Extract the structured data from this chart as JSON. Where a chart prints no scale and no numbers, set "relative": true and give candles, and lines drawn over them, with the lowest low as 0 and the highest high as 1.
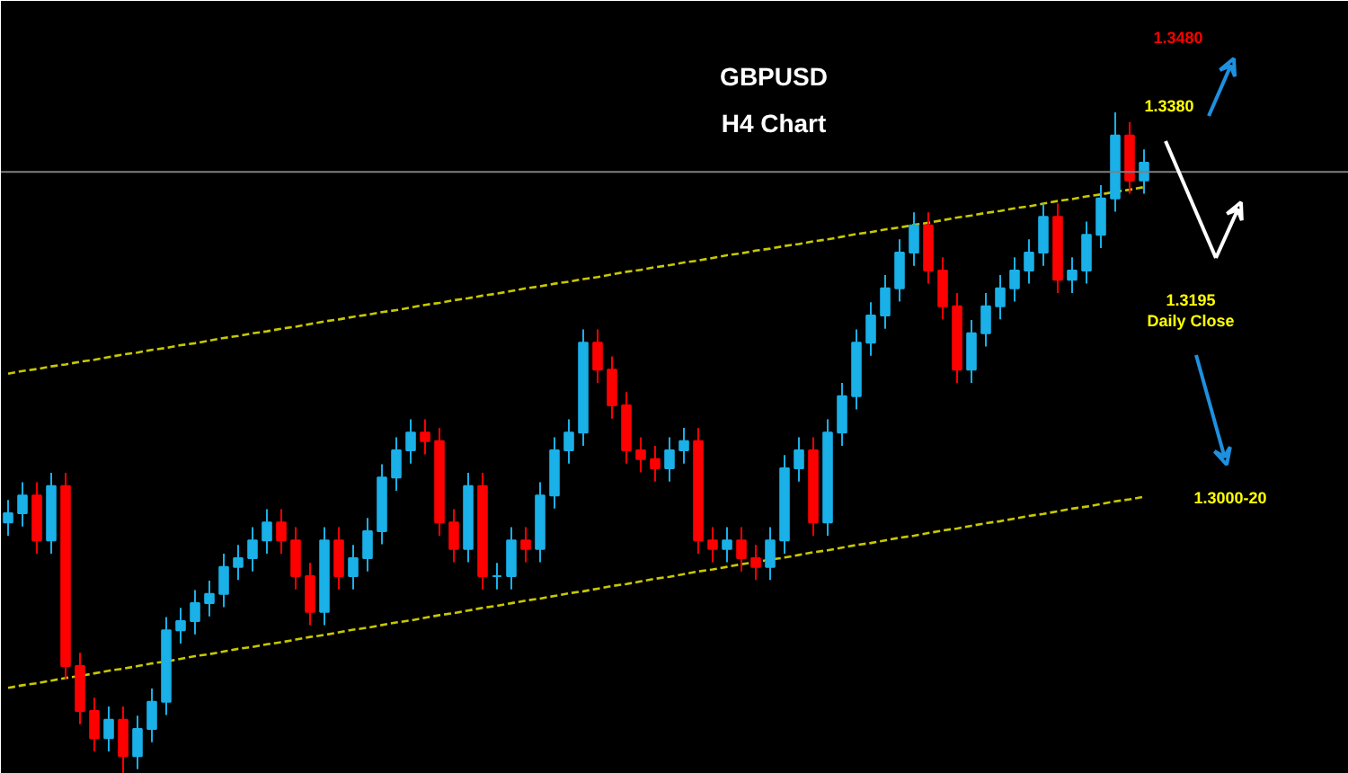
{
  "chart_data": {
    "type": "candlestick",
    "relative": true,
    "title": "GBPUSD",
    "subtitle": "H4 Chart",
    "categories": [
      null,
      null,
      null,
      null,
      null,
      null,
      null,
      null,
      null,
      null,
      null,
      null,
      null,
      null,
      null,
      null,
      null,
      null,
      null,
      null,
      null,
      null,
      null,
      null,
      null,
      null,
      null,
      null,
      null,
      null,
      null,
      null,
      null,
      null,
      null,
      null,
      null,
      null,
      null,
      null,
      null,
      null,
      null,
      null,
      null,
      null,
      null,
      null,
      null,
      null,
      null,
      null,
      null,
      null,
      null,
      null,
      null,
      null,
      null,
      null,
      null,
      null,
      null,
      null,
      null,
      null,
      null,
      null,
      null,
      null,
      null,
      null,
      null,
      null,
      null,
      null,
      null,
      null,
      null,
      null
    ],
    "ohlc": [
      [
        0.38,
        0.414,
        0.36,
        0.394
      ],
      [
        0.394,
        0.441,
        0.374,
        0.421
      ],
      [
        0.421,
        0.441,
        0.333,
        0.353
      ],
      [
        0.353,
        0.455,
        0.333,
        0.435
      ],
      [
        0.435,
        0.455,
        0.143,
        0.163
      ],
      [
        0.163,
        0.183,
        0.075,
        0.095
      ],
      [
        0.095,
        0.115,
        0.034,
        0.054
      ],
      [
        0.054,
        0.102,
        0.034,
        0.082
      ],
      [
        0.082,
        0.102,
        0,
        0.027
      ],
      [
        0.027,
        0.088,
        0.007,
        0.068
      ],
      [
        0.068,
        0.129,
        0.048,
        0.109
      ],
      [
        0.109,
        0.237,
        0.089,
        0.217
      ],
      [
        0.217,
        0.251,
        0.197,
        0.231
      ],
      [
        0.231,
        0.278,
        0.211,
        0.258
      ],
      [
        0.258,
        0.292,
        0.238,
        0.272
      ],
      [
        0.272,
        0.333,
        0.252,
        0.313
      ],
      [
        0.313,
        0.346,
        0.293,
        0.326
      ],
      [
        0.326,
        0.373,
        0.306,
        0.353
      ],
      [
        0.353,
        0.4,
        0.333,
        0.38
      ],
      [
        0.38,
        0.4,
        0.333,
        0.353
      ],
      [
        0.353,
        0.373,
        0.279,
        0.299
      ],
      [
        0.299,
        0.319,
        0.225,
        0.245
      ],
      [
        0.245,
        0.373,
        0.225,
        0.353
      ],
      [
        0.353,
        0.373,
        0.279,
        0.299
      ],
      [
        0.299,
        0.346,
        0.279,
        0.326
      ],
      [
        0.326,
        0.387,
        0.306,
        0.367
      ],
      [
        0.367,
        0.468,
        0.347,
        0.448
      ],
      [
        0.448,
        0.509,
        0.428,
        0.489
      ],
      [
        0.489,
        0.536,
        0.469,
        0.516
      ],
      [
        0.516,
        0.536,
        0.483,
        0.503
      ],
      [
        0.503,
        0.523,
        0.36,
        0.38
      ],
      [
        0.38,
        0.4,
        0.32,
        0.34
      ],
      [
        0.34,
        0.455,
        0.32,
        0.435
      ],
      [
        0.435,
        0.455,
        0.279,
        0.299
      ],
      [
        0.299,
        0.319,
        0.279,
        0.299
      ],
      [
        0.299,
        0.373,
        0.279,
        0.353
      ],
      [
        0.353,
        0.373,
        0.32,
        0.34
      ],
      [
        0.34,
        0.441,
        0.32,
        0.421
      ],
      [
        0.421,
        0.509,
        0.401,
        0.489
      ],
      [
        0.489,
        0.536,
        0.469,
        0.516
      ],
      [
        0.516,
        0.672,
        0.496,
        0.652
      ],
      [
        0.652,
        0.672,
        0.591,
        0.611
      ],
      [
        0.611,
        0.631,
        0.537,
        0.557
      ],
      [
        0.557,
        0.577,
        0.469,
        0.489
      ],
      [
        0.489,
        0.509,
        0.456,
        0.476
      ],
      [
        0.476,
        0.496,
        0.442,
        0.462
      ],
      [
        0.462,
        0.509,
        0.442,
        0.489
      ],
      [
        0.489,
        0.523,
        0.469,
        0.503
      ],
      [
        0.503,
        0.523,
        0.333,
        0.353
      ],
      [
        0.353,
        0.373,
        0.32,
        0.34
      ],
      [
        0.34,
        0.373,
        0.32,
        0.353
      ],
      [
        0.353,
        0.373,
        0.306,
        0.326
      ],
      [
        0.326,
        0.346,
        0.293,
        0.313
      ],
      [
        0.313,
        0.373,
        0.293,
        0.353
      ],
      [
        0.353,
        0.482,
        0.333,
        0.462
      ],
      [
        0.462,
        0.509,
        0.442,
        0.489
      ],
      [
        0.489,
        0.509,
        0.36,
        0.38
      ],
      [
        0.38,
        0.536,
        0.36,
        0.516
      ],
      [
        0.516,
        0.591,
        0.496,
        0.571
      ],
      [
        0.571,
        0.672,
        0.551,
        0.652
      ],
      [
        0.652,
        0.713,
        0.632,
        0.693
      ],
      [
        0.693,
        0.754,
        0.673,
        0.734
      ],
      [
        0.734,
        0.808,
        0.714,
        0.788
      ],
      [
        0.788,
        0.849,
        0.768,
        0.829
      ],
      [
        0.829,
        0.849,
        0.741,
        0.761
      ],
      [
        0.761,
        0.781,
        0.687,
        0.707
      ],
      [
        0.707,
        0.727,
        0.591,
        0.611
      ],
      [
        0.611,
        0.686,
        0.591,
        0.666
      ],
      [
        0.666,
        0.727,
        0.646,
        0.707
      ],
      [
        0.707,
        0.754,
        0.687,
        0.734
      ],
      [
        0.734,
        0.781,
        0.714,
        0.761
      ],
      [
        0.761,
        0.808,
        0.741,
        0.788
      ],
      [
        0.788,
        0.862,
        0.768,
        0.842
      ],
      [
        0.842,
        0.862,
        0.727,
        0.747
      ],
      [
        0.747,
        0.781,
        0.727,
        0.761
      ],
      [
        0.761,
        0.835,
        0.741,
        0.815
      ],
      [
        0.815,
        0.89,
        0.795,
        0.87
      ],
      [
        0.87,
        1.0,
        0.85,
        0.965
      ],
      [
        0.965,
        0.985,
        0.877,
        0.897
      ],
      [
        0.897,
        0.944,
        0.877,
        0.924
      ]
    ],
    "colors": [
      "#1ab0e8",
      "#1ab0e8",
      "#ff0000",
      "#1ab0e8",
      "#ff0000",
      "#ff0000",
      "#ff0000",
      "#1ab0e8",
      "#ff0000",
      "#1ab0e8",
      "#1ab0e8",
      "#1ab0e8",
      "#1ab0e8",
      "#1ab0e8",
      "#1ab0e8",
      "#1ab0e8",
      "#1ab0e8",
      "#1ab0e8",
      "#1ab0e8",
      "#ff0000",
      "#ff0000",
      "#ff0000",
      "#1ab0e8",
      "#ff0000",
      "#1ab0e8",
      "#1ab0e8",
      "#1ab0e8",
      "#1ab0e8",
      "#1ab0e8",
      "#ff0000",
      "#ff0000",
      "#ff0000",
      "#1ab0e8",
      "#ff0000",
      "#1ab0e8",
      "#1ab0e8",
      "#ff0000",
      "#1ab0e8",
      "#1ab0e8",
      "#1ab0e8",
      "#1ab0e8",
      "#ff0000",
      "#ff0000",
      "#ff0000",
      "#ff0000",
      "#ff0000",
      "#1ab0e8",
      "#1ab0e8",
      "#ff0000",
      "#ff0000",
      "#1ab0e8",
      "#ff0000",
      "#ff0000",
      "#1ab0e8",
      "#1ab0e8",
      "#1ab0e8",
      "#ff0000",
      "#1ab0e8",
      "#1ab0e8",
      "#1ab0e8",
      "#1ab0e8",
      "#1ab0e8",
      "#1ab0e8",
      "#1ab0e8",
      "#ff0000",
      "#ff0000",
      "#ff0000",
      "#1ab0e8",
      "#1ab0e8",
      "#1ab0e8",
      "#1ab0e8",
      "#1ab0e8",
      "#1ab0e8",
      "#ff0000",
      "#1ab0e8",
      "#1ab0e8",
      "#1ab0e8",
      "#1ab0e8",
      "#ff0000",
      "#1ab0e8"
    ],
    "series": [
      {
        "type": "line",
        "color": "#c8c800",
        "line_style": "dashed",
        "values": [
          0.605,
          0.609,
          0.612,
          0.616,
          0.619,
          0.623,
          0.626,
          0.63,
          0.634,
          0.637,
          0.641,
          0.644,
          0.648,
          0.651,
          0.655,
          0.659,
          0.662,
          0.666,
          0.669,
          0.673,
          0.676,
          0.68,
          0.684,
          0.687,
          0.691,
          0.694,
          0.698,
          0.701,
          0.705,
          0.709,
          0.712,
          0.716,
          0.719,
          0.723,
          0.726,
          0.73,
          0.734,
          0.737,
          0.741,
          0.744,
          0.748,
          0.751,
          0.755,
          0.759,
          0.762,
          0.766,
          0.769,
          0.773,
          0.776,
          0.78,
          0.784,
          0.787,
          0.791,
          0.794,
          0.798,
          0.801,
          0.805,
          0.808,
          0.812,
          0.816,
          0.819,
          0.823,
          0.826,
          0.83,
          0.833,
          0.837,
          0.841,
          0.844,
          0.848,
          0.851,
          0.855,
          0.858,
          0.862,
          0.866,
          0.869,
          0.873,
          0.876,
          0.88,
          0.883,
          0.887
        ]
      },
      {
        "type": "line",
        "color": "#c8c800",
        "line_style": "dashed",
        "values": [
          0.13,
          0.134,
          0.137,
          0.141,
          0.145,
          0.148,
          0.152,
          0.156,
          0.159,
          0.163,
          0.167,
          0.17,
          0.174,
          0.178,
          0.181,
          0.185,
          0.189,
          0.192,
          0.196,
          0.199,
          0.203,
          0.207,
          0.21,
          0.214,
          0.218,
          0.221,
          0.225,
          0.229,
          0.232,
          0.236,
          0.24,
          0.243,
          0.247,
          0.251,
          0.254,
          0.258,
          0.262,
          0.265,
          0.269,
          0.273,
          0.276,
          0.28,
          0.284,
          0.287,
          0.291,
          0.295,
          0.298,
          0.302,
          0.306,
          0.309,
          0.313,
          0.317,
          0.32,
          0.324,
          0.327,
          0.331,
          0.335,
          0.338,
          0.342,
          0.346,
          0.349,
          0.353,
          0.357,
          0.36,
          0.364,
          0.368,
          0.371,
          0.375,
          0.379,
          0.382,
          0.386,
          0.39,
          0.393,
          0.397,
          0.401,
          0.404,
          0.408,
          0.412,
          0.415,
          0.419
        ]
      }
    ],
    "ref_lines": [
      {
        "axis": "y",
        "value": 0.91,
        "color": "#808080"
      }
    ],
    "annotations": [
      "1.3480",
      "1.3380",
      "1.3195",
      "Daily Close",
      "1.3000-20"
    ],
    "grid": false,
    "tick_labels": false
  }
}
